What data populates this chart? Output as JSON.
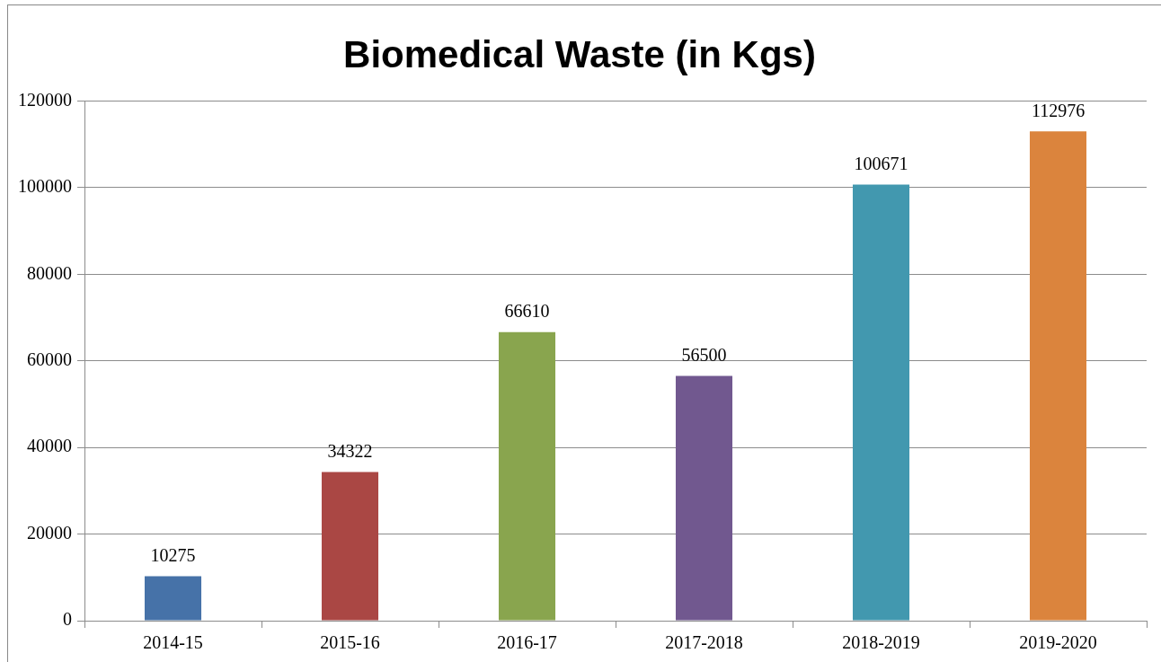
{
  "chart_data": {
    "type": "bar",
    "title": "Biomedical Waste (in Kgs)",
    "categories": [
      "2014-15",
      "2015-16",
      "2016-17",
      "2017-2018",
      "2018-2019",
      "2019-2020"
    ],
    "values": [
      10275,
      34322,
      66610,
      56500,
      100671,
      112976
    ],
    "colors": [
      "#4672a8",
      "#aa4744",
      "#89a54e",
      "#71588f",
      "#4298af",
      "#db843d"
    ],
    "ylim": [
      0,
      120000
    ],
    "yticks": [
      0,
      20000,
      40000,
      60000,
      80000,
      100000,
      120000
    ],
    "grid": "y",
    "legend": false,
    "data_labels": true
  }
}
